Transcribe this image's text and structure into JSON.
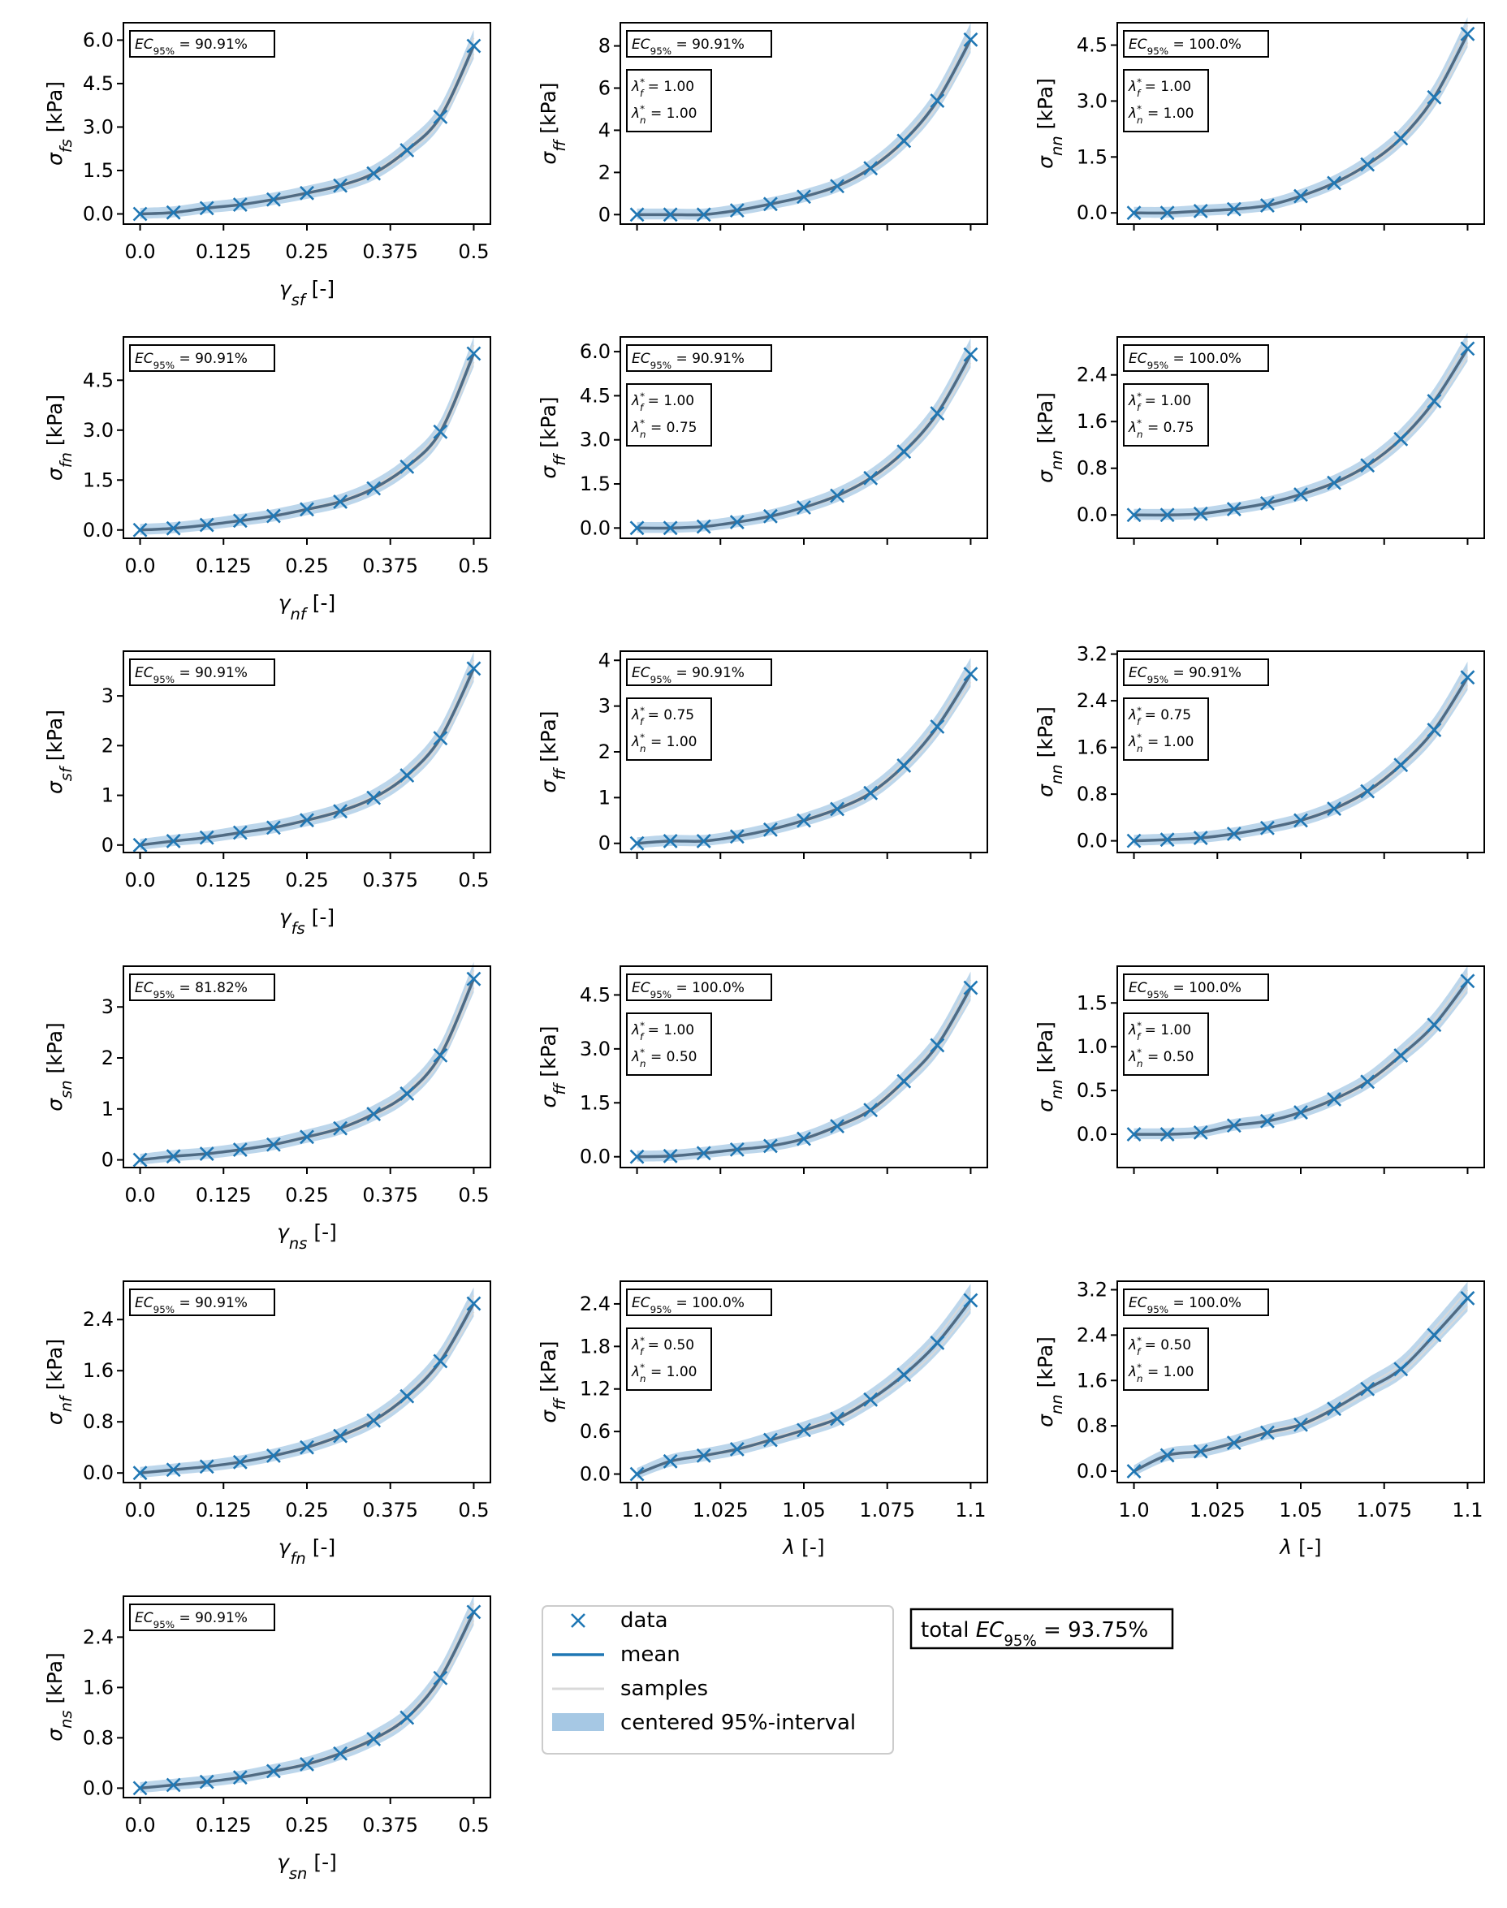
{
  "colors": {
    "accent": "#1f77b4",
    "band": "#a6c8e4",
    "samples": "#d9d9d9"
  },
  "panels": [
    {
      "ylabel": "σ_fs [kPa]",
      "xlabel": "γ_sf [-]",
      "xticks": [
        "0.0",
        "0.125",
        "0.25",
        "0.375",
        "0.5"
      ],
      "yticks": [
        "0.0",
        "1.5",
        "3.0",
        "4.5",
        "6.0"
      ],
      "ylim": [
        -0.35,
        6.6
      ],
      "xlim": [
        -0.025,
        0.525
      ],
      "ec": "EC95% = 90.91%",
      "lambda": null,
      "x": [
        0,
        0.05,
        0.1,
        0.15,
        0.2,
        0.25,
        0.3,
        0.35,
        0.4,
        0.45,
        0.5
      ],
      "y": [
        0,
        0.05,
        0.2,
        0.32,
        0.5,
        0.72,
        0.98,
        1.4,
        2.2,
        3.35,
        5.8
      ]
    },
    {
      "ylabel": "σ_ff [kPa]",
      "xlabel": "",
      "xticks": [],
      "yticks": [
        "0",
        "2",
        "4",
        "6",
        "8"
      ],
      "ylim": [
        -0.45,
        9.1
      ],
      "xlim": [
        0.995,
        1.105
      ],
      "ec": "EC95% = 90.91%",
      "lambda": [
        "λf* = 1.00",
        "λn* = 1.00"
      ],
      "x": [
        1,
        1.01,
        1.02,
        1.03,
        1.04,
        1.05,
        1.06,
        1.07,
        1.08,
        1.09,
        1.1
      ],
      "y": [
        0,
        0,
        0,
        0.2,
        0.5,
        0.85,
        1.35,
        2.2,
        3.5,
        5.4,
        8.3
      ]
    },
    {
      "ylabel": "σ_nn [kPa]",
      "xlabel": "",
      "xticks": [],
      "yticks": [
        "0.0",
        "1.5",
        "3.0",
        "4.5"
      ],
      "ylim": [
        -0.3,
        5.1
      ],
      "xlim": [
        0.995,
        1.105
      ],
      "ec": "EC95% = 100.0%",
      "lambda": [
        "λf* = 1.00",
        "λn* = 1.00"
      ],
      "x": [
        1,
        1.01,
        1.02,
        1.03,
        1.04,
        1.05,
        1.06,
        1.07,
        1.08,
        1.09,
        1.1
      ],
      "y": [
        0,
        0,
        0.05,
        0.1,
        0.2,
        0.45,
        0.8,
        1.3,
        2.0,
        3.1,
        4.8
      ]
    },
    {
      "ylabel": "σ_fn [kPa]",
      "xlabel": "γ_nf [-]",
      "xticks": [
        "0.0",
        "0.125",
        "0.25",
        "0.375",
        "0.5"
      ],
      "yticks": [
        "0.0",
        "1.5",
        "3.0",
        "4.5"
      ],
      "ylim": [
        -0.25,
        5.8
      ],
      "xlim": [
        -0.025,
        0.525
      ],
      "ec": "EC95% = 90.91%",
      "lambda": null,
      "x": [
        0,
        0.05,
        0.1,
        0.15,
        0.2,
        0.25,
        0.3,
        0.35,
        0.4,
        0.45,
        0.5
      ],
      "y": [
        0,
        0.05,
        0.15,
        0.28,
        0.42,
        0.62,
        0.85,
        1.25,
        1.9,
        2.95,
        5.3
      ]
    },
    {
      "ylabel": "σ_ff [kPa]",
      "xlabel": "",
      "xticks": [],
      "yticks": [
        "0.0",
        "1.5",
        "3.0",
        "4.5",
        "6.0"
      ],
      "ylim": [
        -0.35,
        6.5
      ],
      "xlim": [
        0.995,
        1.105
      ],
      "ec": "EC95% = 90.91%",
      "lambda": [
        "λf* = 1.00",
        "λn* = 0.75"
      ],
      "x": [
        1,
        1.01,
        1.02,
        1.03,
        1.04,
        1.05,
        1.06,
        1.07,
        1.08,
        1.09,
        1.1
      ],
      "y": [
        0,
        0,
        0.05,
        0.2,
        0.4,
        0.7,
        1.1,
        1.7,
        2.6,
        3.9,
        5.9
      ]
    },
    {
      "ylabel": "σ_nn [kPa]",
      "xlabel": "",
      "xticks": [],
      "yticks": [
        "0.0",
        "0.8",
        "1.6",
        "2.4"
      ],
      "ylim": [
        -0.4,
        3.05
      ],
      "xlim": [
        0.995,
        1.105
      ],
      "ec": "EC95% = 100.0%",
      "lambda": [
        "λf* = 1.00",
        "λn* = 0.75"
      ],
      "x": [
        1,
        1.01,
        1.02,
        1.03,
        1.04,
        1.05,
        1.06,
        1.07,
        1.08,
        1.09,
        1.1
      ],
      "y": [
        0,
        0,
        0.02,
        0.1,
        0.2,
        0.35,
        0.55,
        0.85,
        1.3,
        1.95,
        2.85
      ]
    },
    {
      "ylabel": "σ_sf [kPa]",
      "xlabel": "γ_fs [-]",
      "xticks": [
        "0.0",
        "0.125",
        "0.25",
        "0.375",
        "0.5"
      ],
      "yticks": [
        "0",
        "1",
        "2",
        "3"
      ],
      "ylim": [
        -0.15,
        3.9
      ],
      "xlim": [
        -0.025,
        0.525
      ],
      "ec": "EC95% = 90.91%",
      "lambda": null,
      "x": [
        0,
        0.05,
        0.1,
        0.15,
        0.2,
        0.25,
        0.3,
        0.35,
        0.4,
        0.45,
        0.5
      ],
      "y": [
        0,
        0.08,
        0.15,
        0.25,
        0.35,
        0.5,
        0.68,
        0.95,
        1.4,
        2.15,
        3.55
      ]
    },
    {
      "ylabel": "σ_ff [kPa]",
      "xlabel": "",
      "xticks": [],
      "yticks": [
        "0",
        "1",
        "2",
        "3",
        "4"
      ],
      "ylim": [
        -0.2,
        4.2
      ],
      "xlim": [
        0.995,
        1.105
      ],
      "ec": "EC95% = 90.91%",
      "lambda": [
        "λf* = 0.75",
        "λn* = 1.00"
      ],
      "x": [
        1,
        1.01,
        1.02,
        1.03,
        1.04,
        1.05,
        1.06,
        1.07,
        1.08,
        1.09,
        1.1
      ],
      "y": [
        0,
        0.05,
        0.05,
        0.15,
        0.3,
        0.5,
        0.75,
        1.1,
        1.7,
        2.55,
        3.7
      ]
    },
    {
      "ylabel": "σ_nn [kPa]",
      "xlabel": "",
      "xticks": [],
      "yticks": [
        "0.0",
        "0.8",
        "1.6",
        "2.4",
        "3.2"
      ],
      "ylim": [
        -0.2,
        3.25
      ],
      "xlim": [
        0.995,
        1.105
      ],
      "ec": "EC95% = 90.91%",
      "lambda": [
        "λf* = 0.75",
        "λn* = 1.00"
      ],
      "x": [
        1,
        1.01,
        1.02,
        1.03,
        1.04,
        1.05,
        1.06,
        1.07,
        1.08,
        1.09,
        1.1
      ],
      "y": [
        0,
        0.02,
        0.05,
        0.12,
        0.22,
        0.35,
        0.55,
        0.85,
        1.3,
        1.9,
        2.8
      ]
    },
    {
      "ylabel": "σ_sn [kPa]",
      "xlabel": "γ_ns [-]",
      "xticks": [
        "0.0",
        "0.125",
        "0.25",
        "0.375",
        "0.5"
      ],
      "yticks": [
        "0",
        "1",
        "2",
        "3"
      ],
      "ylim": [
        -0.15,
        3.8
      ],
      "xlim": [
        -0.025,
        0.525
      ],
      "ec": "EC95% = 81.82%",
      "lambda": null,
      "x": [
        0,
        0.05,
        0.1,
        0.15,
        0.2,
        0.25,
        0.3,
        0.35,
        0.4,
        0.45,
        0.5
      ],
      "y": [
        0,
        0.07,
        0.12,
        0.2,
        0.3,
        0.45,
        0.62,
        0.9,
        1.3,
        2.05,
        3.55
      ]
    },
    {
      "ylabel": "σ_ff [kPa]",
      "xlabel": "",
      "xticks": [],
      "yticks": [
        "0.0",
        "1.5",
        "3.0",
        "4.5"
      ],
      "ylim": [
        -0.3,
        5.3
      ],
      "xlim": [
        0.995,
        1.105
      ],
      "ec": "EC95% = 100.0%",
      "lambda": [
        "λf* = 1.00",
        "λn* = 0.50"
      ],
      "x": [
        1,
        1.01,
        1.02,
        1.03,
        1.04,
        1.05,
        1.06,
        1.07,
        1.08,
        1.09,
        1.1
      ],
      "y": [
        0,
        0.02,
        0.1,
        0.2,
        0.3,
        0.5,
        0.85,
        1.3,
        2.1,
        3.1,
        4.7
      ]
    },
    {
      "ylabel": "σ_nn [kPa]",
      "xlabel": "",
      "xticks": [],
      "yticks": [
        "0.0",
        "0.5",
        "1.0",
        "1.5"
      ],
      "ylim": [
        -0.38,
        1.92
      ],
      "xlim": [
        0.995,
        1.105
      ],
      "ec": "EC95% = 100.0%",
      "lambda": [
        "λf* = 1.00",
        "λn* = 0.50"
      ],
      "x": [
        1,
        1.01,
        1.02,
        1.03,
        1.04,
        1.05,
        1.06,
        1.07,
        1.08,
        1.09,
        1.1
      ],
      "y": [
        0,
        0,
        0.02,
        0.1,
        0.15,
        0.25,
        0.4,
        0.6,
        0.9,
        1.25,
        1.75
      ]
    },
    {
      "ylabel": "σ_nf [kPa]",
      "xlabel": "γ_fn [-]",
      "xticks": [
        "0.0",
        "0.125",
        "0.25",
        "0.375",
        "0.5"
      ],
      "yticks": [
        "0.0",
        "0.8",
        "1.6",
        "2.4"
      ],
      "ylim": [
        -0.15,
        3.0
      ],
      "xlim": [
        -0.025,
        0.525
      ],
      "ec": "EC95% = 90.91%",
      "lambda": null,
      "x": [
        0,
        0.05,
        0.1,
        0.15,
        0.2,
        0.25,
        0.3,
        0.35,
        0.4,
        0.45,
        0.5
      ],
      "y": [
        0,
        0.05,
        0.1,
        0.17,
        0.27,
        0.4,
        0.58,
        0.82,
        1.2,
        1.75,
        2.65
      ]
    },
    {
      "ylabel": "σ_ff [kPa]",
      "xlabel": "λ [-]",
      "xticks": [
        "1.0",
        "1.025",
        "1.05",
        "1.075",
        "1.1"
      ],
      "yticks": [
        "0.0",
        "0.6",
        "1.2",
        "1.8",
        "2.4"
      ],
      "ylim": [
        -0.12,
        2.72
      ],
      "xlim": [
        0.995,
        1.105
      ],
      "ec": "EC95% = 100.0%",
      "lambda": [
        "λf* = 0.50",
        "λn* = 1.00"
      ],
      "x": [
        1,
        1.01,
        1.02,
        1.03,
        1.04,
        1.05,
        1.06,
        1.07,
        1.08,
        1.09,
        1.1
      ],
      "y": [
        0,
        0.18,
        0.26,
        0.35,
        0.48,
        0.62,
        0.78,
        1.05,
        1.4,
        1.85,
        2.45
      ]
    },
    {
      "ylabel": "σ_nn [kPa]",
      "xlabel": "λ [-]",
      "xticks": [
        "1.0",
        "1.025",
        "1.05",
        "1.075",
        "1.1"
      ],
      "yticks": [
        "0.0",
        "0.8",
        "1.6",
        "2.4",
        "3.2"
      ],
      "ylim": [
        -0.2,
        3.35
      ],
      "xlim": [
        0.995,
        1.105
      ],
      "ec": "EC95% = 100.0%",
      "lambda": [
        "λf* = 0.50",
        "λn* = 1.00"
      ],
      "x": [
        1,
        1.01,
        1.02,
        1.03,
        1.04,
        1.05,
        1.06,
        1.07,
        1.08,
        1.09,
        1.1
      ],
      "y": [
        0,
        0.28,
        0.35,
        0.5,
        0.68,
        0.82,
        1.1,
        1.45,
        1.8,
        2.4,
        3.05
      ]
    },
    {
      "ylabel": "σ_ns [kPa]",
      "xlabel": "γ_sn [-]",
      "xticks": [
        "0.0",
        "0.125",
        "0.25",
        "0.375",
        "0.5"
      ],
      "yticks": [
        "0.0",
        "0.8",
        "1.6",
        "2.4"
      ],
      "ylim": [
        -0.15,
        3.05
      ],
      "xlim": [
        -0.025,
        0.525
      ],
      "ec": "EC95% = 90.91%",
      "lambda": null,
      "x": [
        0,
        0.05,
        0.1,
        0.15,
        0.2,
        0.25,
        0.3,
        0.35,
        0.4,
        0.45,
        0.5
      ],
      "y": [
        0,
        0.05,
        0.1,
        0.17,
        0.27,
        0.38,
        0.55,
        0.78,
        1.12,
        1.75,
        2.8
      ]
    }
  ],
  "legend": [
    "data",
    "mean",
    "samples",
    "centered 95%-interval"
  ],
  "total": "total EC95% = 93.75%"
}
